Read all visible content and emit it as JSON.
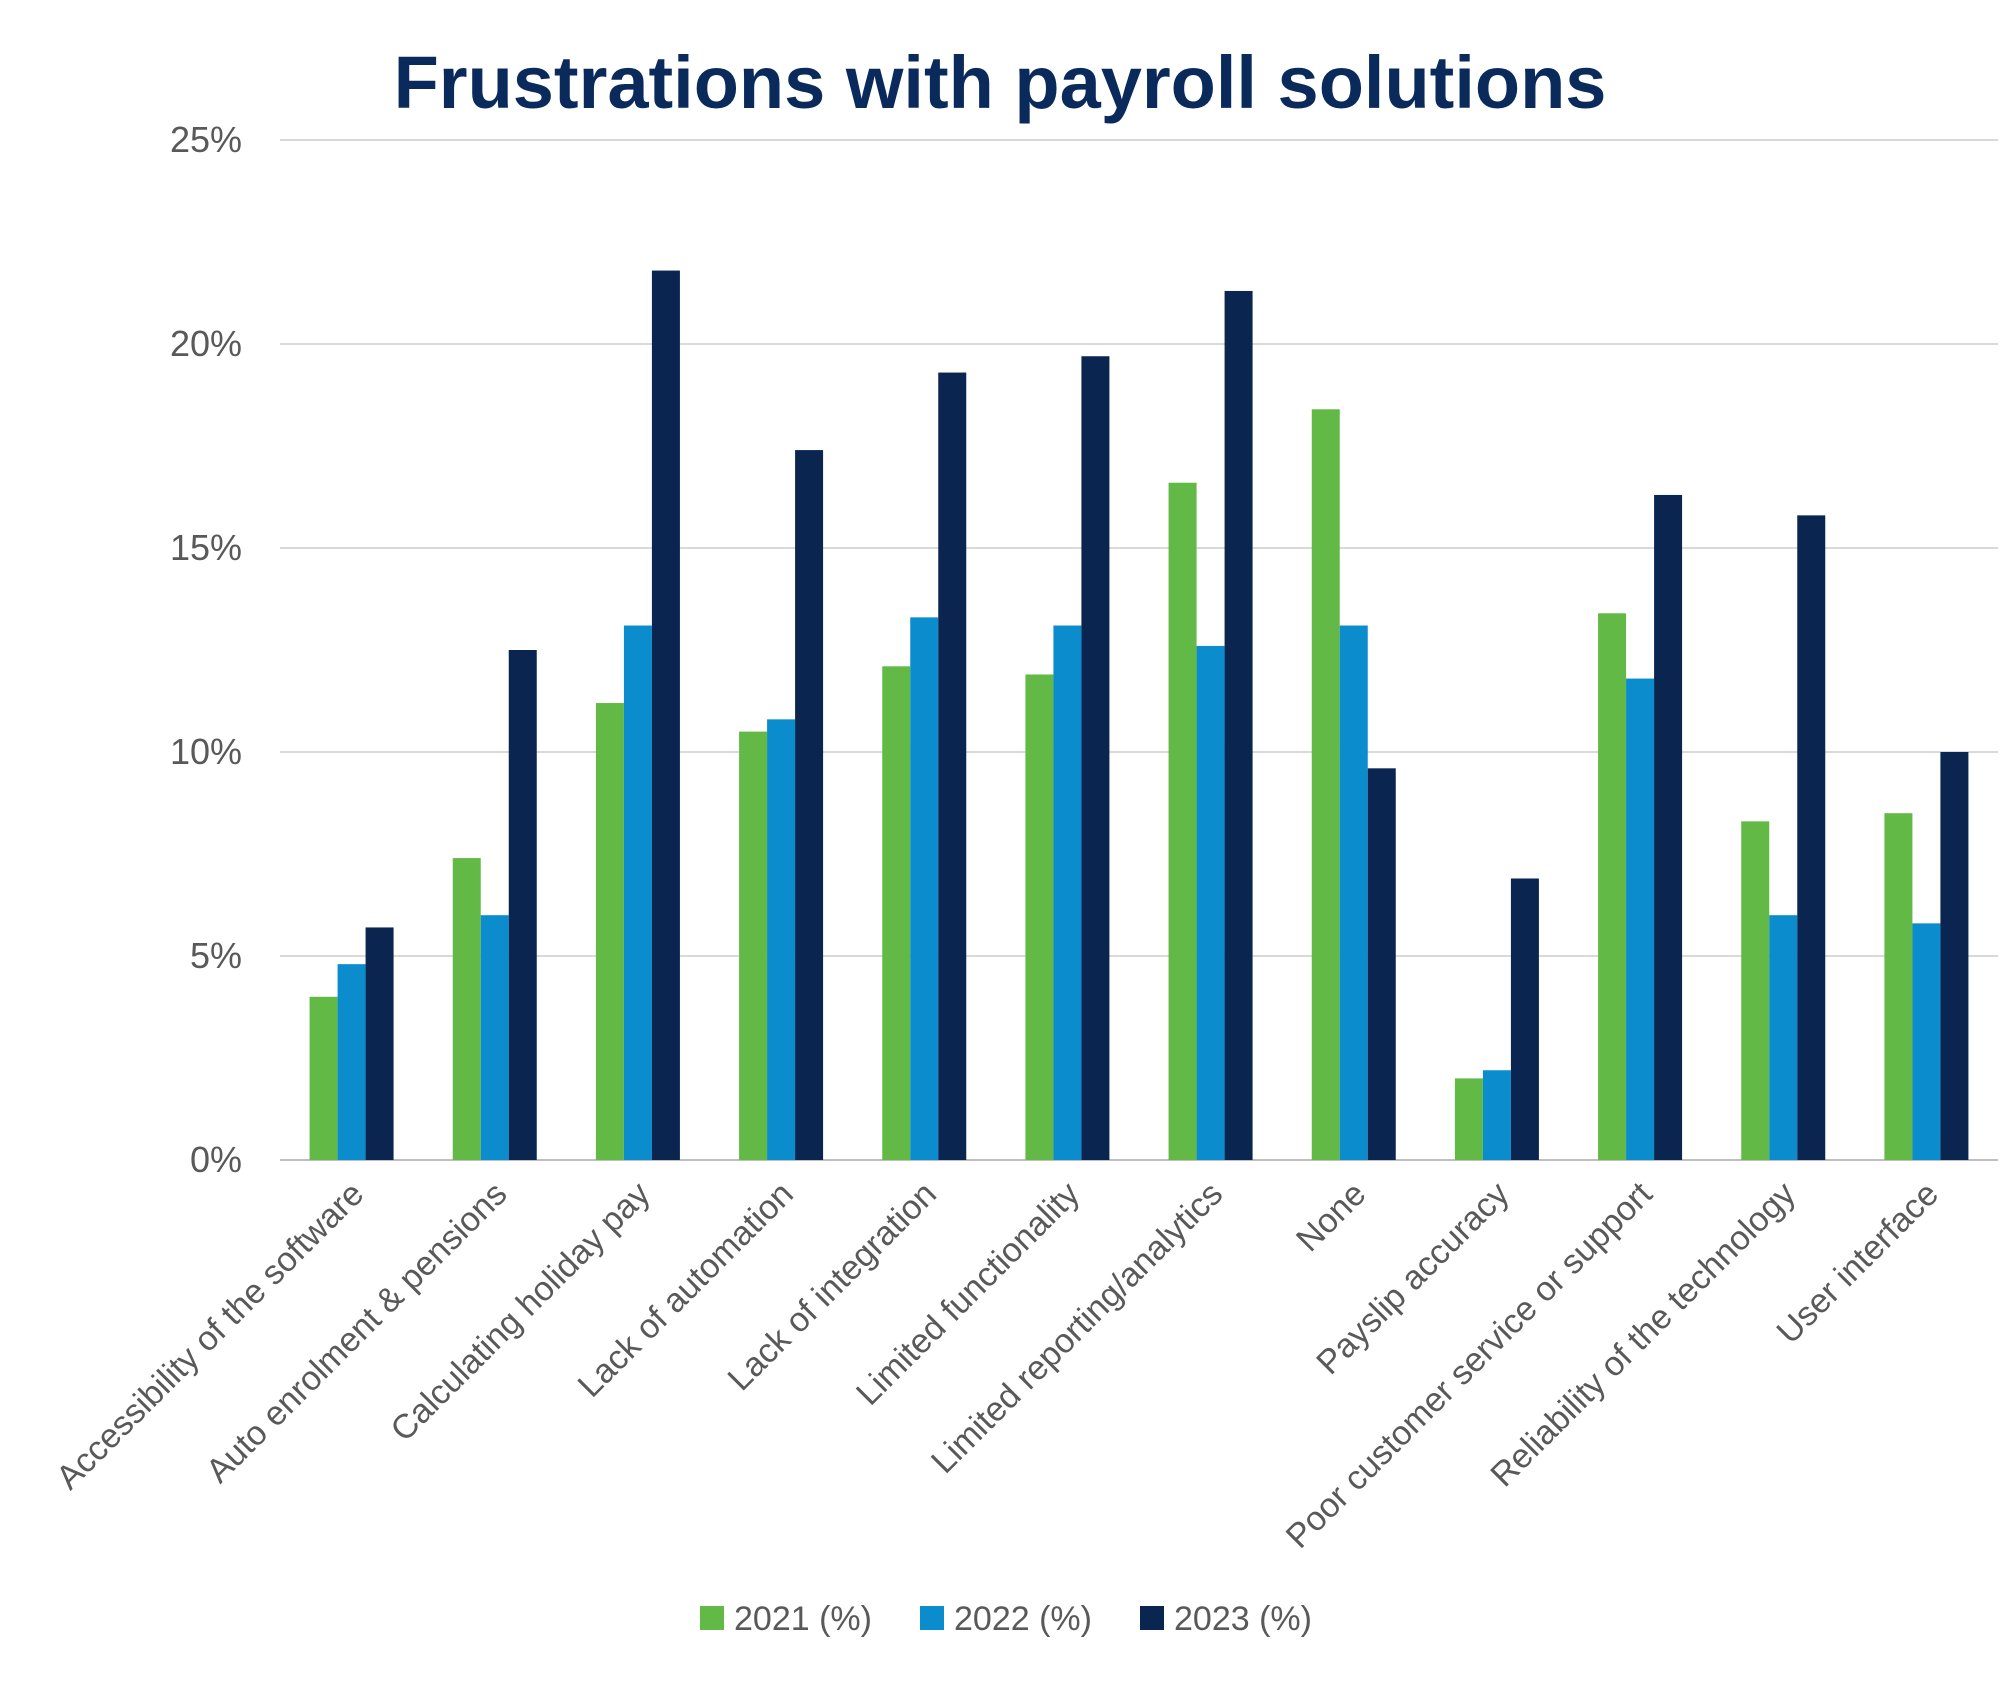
{
  "chart_data": {
    "type": "bar",
    "title": "Frustrations with payroll solutions",
    "xlabel": "",
    "ylabel": "",
    "ylim": [
      0,
      25
    ],
    "y_ticks": [
      0,
      5,
      10,
      15,
      20,
      25
    ],
    "y_tick_labels": [
      "0%",
      "5%",
      "10%",
      "15%",
      "20%",
      "25%"
    ],
    "grid": true,
    "legend_position": "bottom",
    "categories": [
      "Accessibility of the software",
      "Auto enrolment & pensions",
      "Calculating holiday pay",
      "Lack of automation",
      "Lack of integration",
      "Limited functionality",
      "Limited reporting/analytics",
      "None",
      "Payslip accuracy",
      "Poor customer service or support",
      "Reliability of the technology",
      "User interface"
    ],
    "series": [
      {
        "name": "2021 (%)",
        "color": "#62b946",
        "values": [
          4.0,
          7.4,
          11.2,
          10.5,
          12.1,
          11.9,
          16.6,
          18.4,
          2.0,
          13.4,
          8.3,
          8.5
        ]
      },
      {
        "name": "2022 (%)",
        "color": "#0a8ccd",
        "values": [
          4.8,
          6.0,
          13.1,
          10.8,
          13.3,
          13.1,
          12.6,
          13.1,
          2.2,
          11.8,
          6.0,
          5.8
        ]
      },
      {
        "name": "2023 (%)",
        "color": "#0a2650",
        "values": [
          5.7,
          12.5,
          21.8,
          17.4,
          19.3,
          19.7,
          21.3,
          9.6,
          6.9,
          16.3,
          15.8,
          10.0
        ]
      }
    ]
  }
}
